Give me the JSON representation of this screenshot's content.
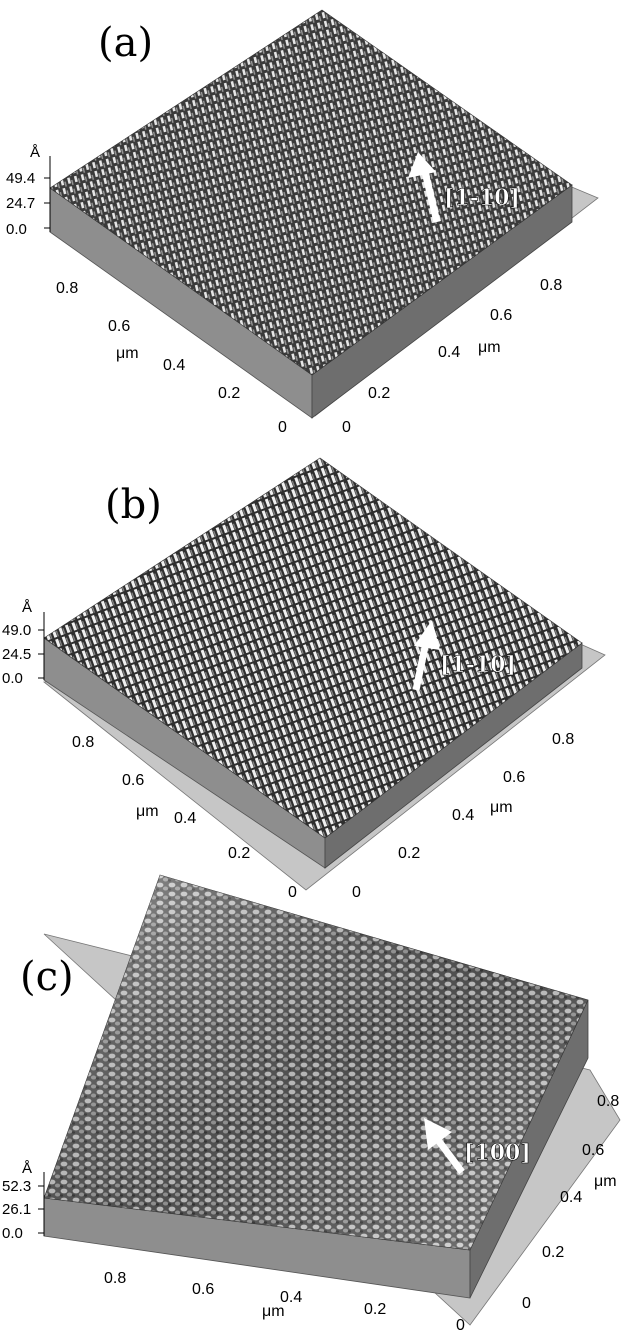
{
  "panels": [
    {
      "label": "(a)",
      "z_unit": "Å",
      "z_ticks": [
        "49.4",
        "24.7",
        "0.0"
      ],
      "left_axis_unit": "μm",
      "left_axis_ticks": [
        "0.8",
        "0.6",
        "0.4",
        "0.2",
        "0"
      ],
      "right_axis_unit": "μm",
      "right_axis_ticks": [
        "0",
        "0.2",
        "0.4",
        "0.6",
        "0.8"
      ],
      "direction_label": "[1-10]"
    },
    {
      "label": "(b)",
      "z_unit": "Å",
      "z_ticks": [
        "49.0",
        "24.5",
        "0.0"
      ],
      "left_axis_unit": "μm",
      "left_axis_ticks": [
        "0.8",
        "0.6",
        "0.4",
        "0.2",
        "0"
      ],
      "right_axis_unit": "μm",
      "right_axis_ticks": [
        "0",
        "0.2",
        "0.4",
        "0.6",
        "0.8"
      ],
      "direction_label": "[1-10]"
    },
    {
      "label": "(c)",
      "z_unit": "Å",
      "z_ticks": [
        "52.3",
        "26.1",
        "0.0"
      ],
      "left_axis_unit": "μm",
      "left_axis_ticks": [
        "0.8",
        "0.6",
        "0.4",
        "0.2",
        "0"
      ],
      "right_axis_unit": "μm",
      "right_axis_ticks": [
        "0",
        "0.2",
        "0.4",
        "0.6",
        "0.8"
      ],
      "direction_label": "[100]"
    }
  ],
  "colors": {
    "surface_dark": "#2e2e2e",
    "surface_light": "#d8d8d8",
    "side_wall": "#8a8a8a",
    "base_plane": "#c4c4c4"
  }
}
